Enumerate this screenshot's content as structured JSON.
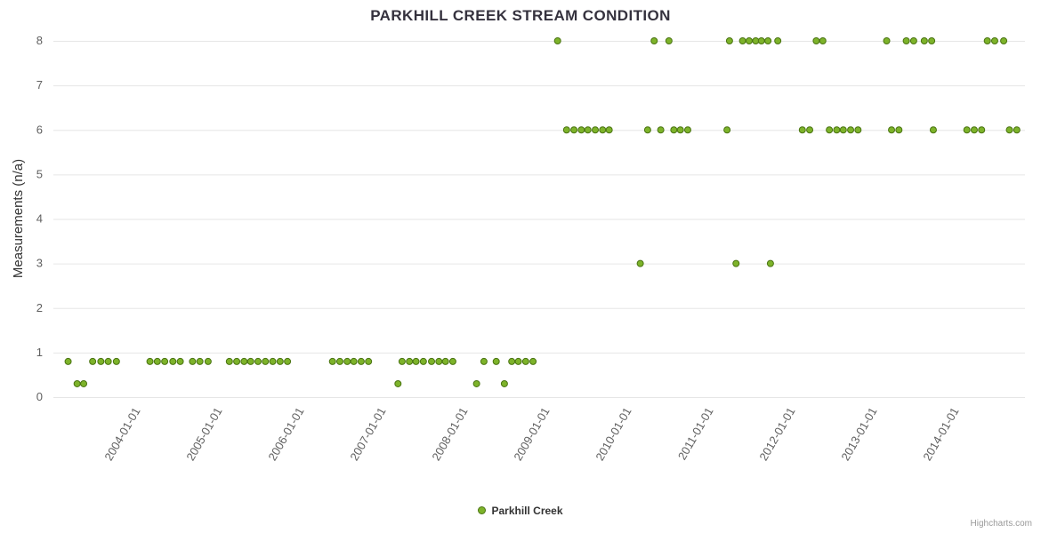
{
  "title": "PARKHILL CREEK STREAM CONDITION",
  "legend": {
    "series_label": "Parkhill Creek"
  },
  "credits": "Highcharts.com",
  "colors": {
    "point_fill": "#7db32a",
    "point_stroke": "#4a7412",
    "grid_line": "#e6e6e6",
    "axis_label": "#606060",
    "title_text": "#35323e"
  },
  "chart_data": {
    "type": "scatter",
    "title": "PARKHILL CREEK STREAM CONDITION",
    "xlabel": "",
    "ylabel": "Measurements (n/a)",
    "grid": "horizontal",
    "legend_position": "bottom-center",
    "x_axis": {
      "min": 2003.0,
      "max": 2014.87,
      "tick_years": [
        2004,
        2005,
        2006,
        2007,
        2008,
        2009,
        2010,
        2011,
        2012,
        2013,
        2014
      ],
      "tick_labels": [
        "2004-01-01",
        "2005-01-01",
        "2006-01-01",
        "2007-01-01",
        "2008-01-01",
        "2009-01-01",
        "2010-01-01",
        "2011-01-01",
        "2012-01-01",
        "2013-01-01",
        "2014-01-01"
      ],
      "label_rotation_deg": -60
    },
    "y_axis": {
      "min": 0,
      "max": 8,
      "ticks": [
        0,
        1,
        2,
        3,
        4,
        5,
        6,
        7,
        8
      ]
    },
    "series": [
      {
        "name": "Parkhill Creek",
        "color": "#7db32a",
        "marker_stroke": "#4a7412",
        "points": [
          [
            2003.18,
            0.8
          ],
          [
            2003.29,
            0.3
          ],
          [
            2003.37,
            0.3
          ],
          [
            2003.48,
            0.8
          ],
          [
            2003.58,
            0.8
          ],
          [
            2003.67,
            0.8
          ],
          [
            2003.77,
            0.8
          ],
          [
            2004.18,
            0.8
          ],
          [
            2004.27,
            0.8
          ],
          [
            2004.36,
            0.8
          ],
          [
            2004.46,
            0.8
          ],
          [
            2004.55,
            0.8
          ],
          [
            2004.7,
            0.8
          ],
          [
            2004.79,
            0.8
          ],
          [
            2004.89,
            0.8
          ],
          [
            2005.15,
            0.8
          ],
          [
            2005.24,
            0.8
          ],
          [
            2005.33,
            0.8
          ],
          [
            2005.41,
            0.8
          ],
          [
            2005.5,
            0.8
          ],
          [
            2005.59,
            0.8
          ],
          [
            2005.68,
            0.8
          ],
          [
            2005.77,
            0.8
          ],
          [
            2005.86,
            0.8
          ],
          [
            2006.41,
            0.8
          ],
          [
            2006.5,
            0.8
          ],
          [
            2006.59,
            0.8
          ],
          [
            2006.67,
            0.8
          ],
          [
            2006.76,
            0.8
          ],
          [
            2006.85,
            0.8
          ],
          [
            2007.21,
            0.3
          ],
          [
            2007.26,
            0.8
          ],
          [
            2007.35,
            0.8
          ],
          [
            2007.43,
            0.8
          ],
          [
            2007.52,
            0.8
          ],
          [
            2007.62,
            0.8
          ],
          [
            2007.71,
            0.8
          ],
          [
            2007.79,
            0.8
          ],
          [
            2007.88,
            0.8
          ],
          [
            2008.17,
            0.3
          ],
          [
            2008.26,
            0.8
          ],
          [
            2008.41,
            0.8
          ],
          [
            2008.51,
            0.3
          ],
          [
            2008.6,
            0.8
          ],
          [
            2008.68,
            0.8
          ],
          [
            2008.77,
            0.8
          ],
          [
            2008.86,
            0.8
          ],
          [
            2009.16,
            8
          ],
          [
            2009.27,
            6
          ],
          [
            2009.36,
            6
          ],
          [
            2009.45,
            6
          ],
          [
            2009.53,
            6
          ],
          [
            2009.62,
            6
          ],
          [
            2009.71,
            6
          ],
          [
            2009.79,
            6
          ],
          [
            2010.17,
            3
          ],
          [
            2010.26,
            6
          ],
          [
            2010.34,
            8
          ],
          [
            2010.42,
            6
          ],
          [
            2010.52,
            8
          ],
          [
            2010.58,
            6
          ],
          [
            2010.66,
            6
          ],
          [
            2010.75,
            6
          ],
          [
            2011.23,
            6
          ],
          [
            2011.26,
            8
          ],
          [
            2011.34,
            3
          ],
          [
            2011.42,
            8
          ],
          [
            2011.5,
            8
          ],
          [
            2011.58,
            8
          ],
          [
            2011.65,
            8
          ],
          [
            2011.73,
            8
          ],
          [
            2011.85,
            8
          ],
          [
            2011.76,
            3
          ],
          [
            2012.15,
            6
          ],
          [
            2012.24,
            6
          ],
          [
            2012.32,
            8
          ],
          [
            2012.4,
            8
          ],
          [
            2012.48,
            6
          ],
          [
            2012.57,
            6
          ],
          [
            2012.65,
            6
          ],
          [
            2012.74,
            6
          ],
          [
            2012.83,
            6
          ],
          [
            2013.18,
            8
          ],
          [
            2013.24,
            6
          ],
          [
            2013.33,
            6
          ],
          [
            2013.42,
            8
          ],
          [
            2013.51,
            8
          ],
          [
            2013.64,
            8
          ],
          [
            2013.73,
            8
          ],
          [
            2013.75,
            6
          ],
          [
            2014.16,
            6
          ],
          [
            2014.25,
            6
          ],
          [
            2014.34,
            6
          ],
          [
            2014.41,
            8
          ],
          [
            2014.5,
            8
          ],
          [
            2014.61,
            8
          ],
          [
            2014.68,
            6
          ],
          [
            2014.77,
            6
          ]
        ]
      }
    ]
  }
}
